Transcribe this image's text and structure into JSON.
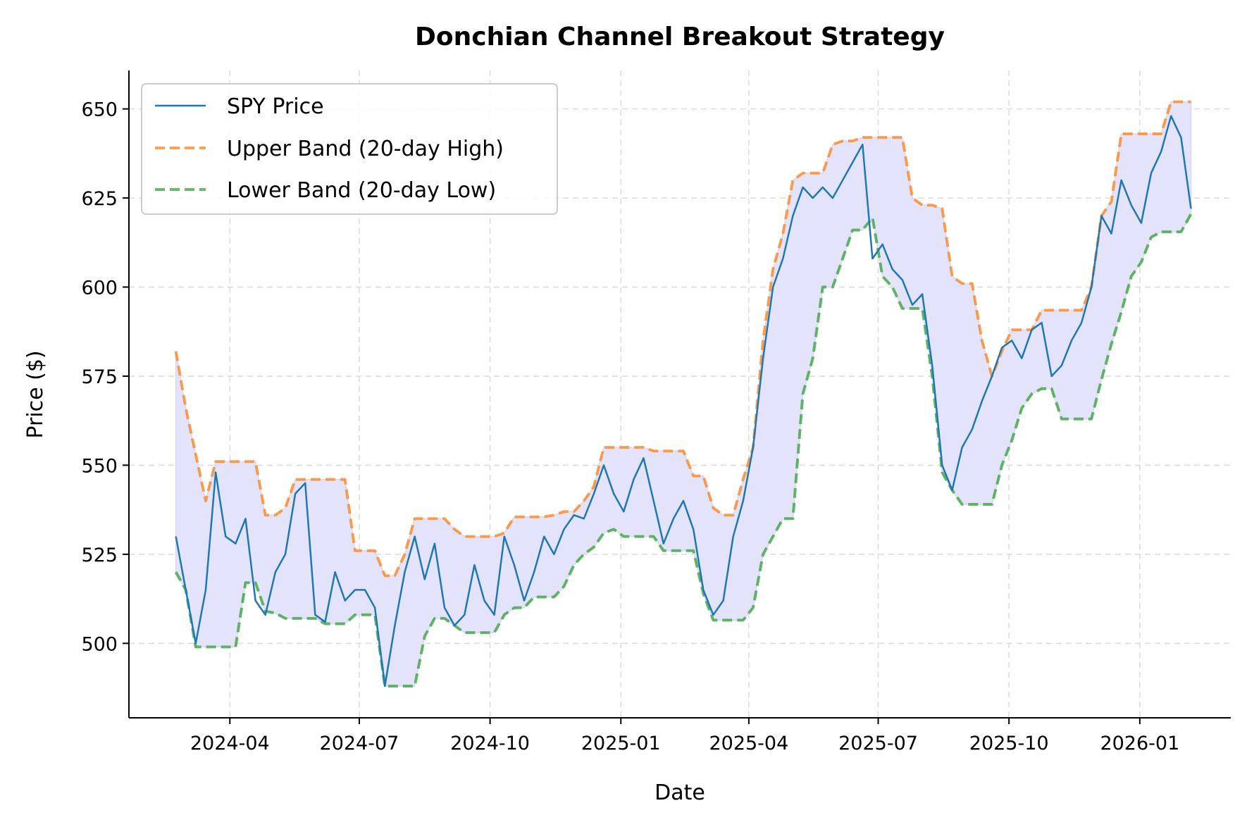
{
  "chart_data": {
    "type": "line",
    "title": "Donchian Channel Breakout Strategy",
    "xlabel": "Date",
    "ylabel": "Price ($)",
    "xlim": [
      "2024-01-21",
      "2026-03-06"
    ],
    "ylim": [
      479.1,
      660.8
    ],
    "grid": true,
    "legend_position": "top-left",
    "x_ticks": [
      "2024-04",
      "2024-07",
      "2024-10",
      "2025-01",
      "2025-04",
      "2025-07",
      "2025-10",
      "2026-01"
    ],
    "y_ticks": [
      500,
      525,
      550,
      575,
      600,
      625,
      650
    ],
    "x": [
      "2024-02-23",
      "2024-03-01",
      "2024-03-08",
      "2024-03-15",
      "2024-03-22",
      "2024-03-29",
      "2024-04-05",
      "2024-04-12",
      "2024-04-19",
      "2024-04-26",
      "2024-05-03",
      "2024-05-10",
      "2024-05-17",
      "2024-05-24",
      "2024-05-31",
      "2024-06-07",
      "2024-06-14",
      "2024-06-21",
      "2024-06-28",
      "2024-07-05",
      "2024-07-12",
      "2024-07-19",
      "2024-07-26",
      "2024-08-02",
      "2024-08-09",
      "2024-08-16",
      "2024-08-23",
      "2024-08-30",
      "2024-09-06",
      "2024-09-13",
      "2024-09-20",
      "2024-09-27",
      "2024-10-04",
      "2024-10-11",
      "2024-10-18",
      "2024-10-25",
      "2024-11-01",
      "2024-11-08",
      "2024-11-15",
      "2024-11-22",
      "2024-11-29",
      "2024-12-06",
      "2024-12-13",
      "2024-12-20",
      "2024-12-27",
      "2025-01-03",
      "2025-01-10",
      "2025-01-17",
      "2025-01-24",
      "2025-01-31",
      "2025-02-07",
      "2025-02-14",
      "2025-02-21",
      "2025-02-28",
      "2025-03-07",
      "2025-03-14",
      "2025-03-21",
      "2025-03-28",
      "2025-04-04",
      "2025-04-11",
      "2025-04-18",
      "2025-04-25",
      "2025-05-02",
      "2025-05-09",
      "2025-05-16",
      "2025-05-23",
      "2025-05-30",
      "2025-06-06",
      "2025-06-13",
      "2025-06-20",
      "2025-06-27",
      "2025-07-04",
      "2025-07-11",
      "2025-07-18",
      "2025-07-25",
      "2025-08-01",
      "2025-08-08",
      "2025-08-15",
      "2025-08-22",
      "2025-08-29",
      "2025-09-05",
      "2025-09-12",
      "2025-09-19",
      "2025-09-26",
      "2025-10-03",
      "2025-10-10",
      "2025-10-17",
      "2025-10-24",
      "2025-10-31",
      "2025-11-07",
      "2025-11-14",
      "2025-11-21",
      "2025-11-28",
      "2025-12-05",
      "2025-12-12",
      "2025-12-19",
      "2025-12-26",
      "2026-01-02",
      "2026-01-09",
      "2026-01-16",
      "2026-01-23",
      "2026-01-30",
      "2026-02-06"
    ],
    "series": [
      {
        "name": "SPY Price",
        "color": "#1f77b4",
        "style": "solid",
        "values": [
          530,
          515,
          500,
          515,
          548,
          530,
          528,
          535,
          512,
          508,
          520,
          525,
          542,
          545,
          508,
          506,
          520,
          512,
          515,
          515,
          510,
          488,
          505,
          520,
          530,
          518,
          528,
          510,
          505,
          508,
          522,
          512,
          508,
          530,
          522,
          512,
          520,
          530,
          525,
          532,
          536,
          535,
          542,
          550,
          542,
          537,
          546,
          552,
          540,
          528,
          535,
          540,
          532,
          515,
          508,
          512,
          530,
          540,
          555,
          580,
          600,
          608,
          620,
          628,
          625,
          628,
          625,
          630,
          635,
          640,
          608,
          612,
          605,
          602,
          595,
          598,
          578,
          550,
          543,
          555,
          560,
          568,
          575,
          583,
          585,
          580,
          588,
          590,
          575,
          578,
          585,
          590,
          600,
          620,
          615,
          630,
          623,
          618,
          632,
          638,
          648,
          642,
          622
        ]
      },
      {
        "name": "Upper Band (20-day High)",
        "color": "#ff7f0e",
        "style": "dashed",
        "values": [
          582,
          566,
          553,
          540,
          551,
          551,
          551,
          551,
          551,
          536,
          536,
          538,
          546,
          546,
          546,
          546,
          546,
          546,
          526,
          526,
          526,
          519,
          519,
          525,
          535,
          535,
          535,
          535,
          532,
          530,
          530,
          530,
          530,
          531,
          535.5,
          535.5,
          535.5,
          535.5,
          536,
          537,
          537,
          540,
          544,
          555,
          555,
          555,
          555,
          555,
          554,
          554,
          554,
          554,
          547,
          547,
          538,
          536,
          536,
          546,
          555,
          585,
          605,
          615,
          630,
          632,
          632,
          632,
          640,
          641,
          641,
          642,
          642,
          642,
          642,
          642,
          625,
          623,
          623,
          622,
          603,
          601,
          601,
          585,
          575,
          582,
          588,
          588,
          588,
          593.5,
          593.5,
          593.5,
          593.5,
          593.5,
          600,
          620,
          624,
          643,
          643,
          643,
          643,
          643,
          652,
          652,
          652
        ]
      },
      {
        "name": "Lower Band (20-day Low)",
        "color": "#2ca02c",
        "style": "dashed",
        "values": [
          520,
          515,
          499,
          499,
          499,
          499,
          499,
          517,
          517,
          509,
          508.5,
          507,
          507,
          507,
          507,
          505.5,
          505.5,
          505.5,
          508,
          508,
          508,
          488,
          488,
          488,
          488,
          502,
          507,
          507,
          505,
          503,
          503,
          503,
          503,
          508,
          510,
          510,
          513,
          513,
          513,
          516,
          522,
          525,
          527,
          531,
          532,
          530,
          530,
          530,
          530,
          526,
          526,
          526,
          526,
          514,
          506.5,
          506.5,
          506.5,
          506.5,
          510,
          525,
          530,
          535,
          535,
          570,
          580,
          600,
          600,
          608,
          616,
          616,
          619.5,
          603,
          600,
          594,
          594,
          594,
          575,
          548,
          543,
          539,
          539,
          539,
          539,
          550,
          557,
          566,
          570,
          571.5,
          571.5,
          563,
          563,
          563,
          563,
          574,
          584,
          593,
          603,
          607,
          614,
          615.5,
          615.5,
          615.5,
          620.5
        ]
      }
    ],
    "fill_between": {
      "from": "Lower Band (20-day Low)",
      "to": "Upper Band (20-day High)",
      "color": "#e3e3fb"
    }
  }
}
